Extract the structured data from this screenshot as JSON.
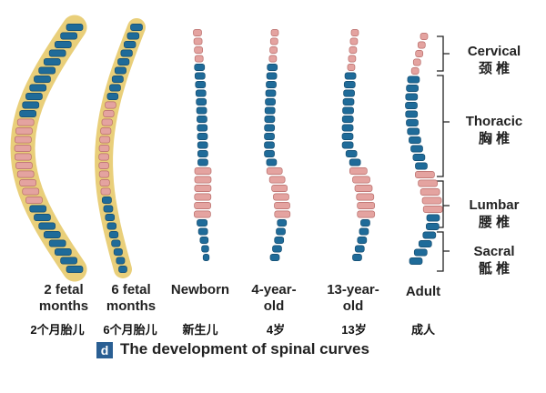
{
  "stages": [
    {
      "label": "2 fetal months",
      "label_zh": "2个月胎儿"
    },
    {
      "label": "6 fetal months",
      "label_zh": "6个月胎儿"
    },
    {
      "label": "Newborn",
      "label_zh": "新生儿"
    },
    {
      "label": "4-year-old",
      "label_zh": "4岁"
    },
    {
      "label": "13-year-old",
      "label_zh": "13岁"
    },
    {
      "label": "Adult",
      "label_zh": "成人"
    }
  ],
  "regions": [
    {
      "label": "Cervical",
      "label_zh": "颈 椎"
    },
    {
      "label": "Thoracic",
      "label_zh": "胸 椎"
    },
    {
      "label": "Lumbar",
      "label_zh": "腰 椎"
    },
    {
      "label": "Sacral",
      "label_zh": "骶 椎"
    }
  ],
  "caption": {
    "letter": "d",
    "text": "The development of spinal curves"
  }
}
